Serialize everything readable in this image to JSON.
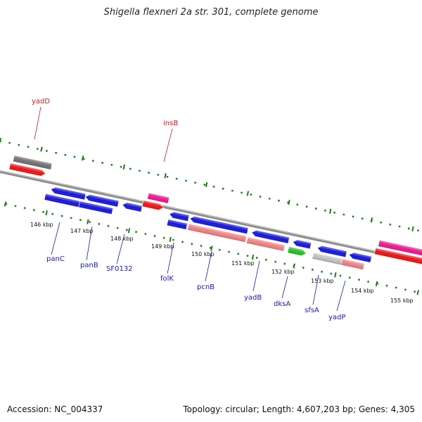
{
  "title": "Shigella flexneri 2a str. 301, complete genome",
  "footer": {
    "accession": "Accession: NC_004337",
    "topology": "Topology: circular; Length: 4,607,203 bp; Genes: 4,305"
  },
  "colors": {
    "backbone": "#8a8a8a",
    "ticks": "#1f7a1f",
    "blue": "#1414e0",
    "red": "#f01010",
    "pink": "#f0148c",
    "salmon": "#f08080",
    "green": "#22c022",
    "gray": "#707070",
    "lightgray": "#c0c0c0",
    "label_blue": "#1a1aa8",
    "label_red": "#c81a1a"
  },
  "kbp_labels": [
    "146 kbp",
    "147 kbp",
    "148 kbp",
    "149 kbp",
    "150 kbp",
    "151 kbp",
    "152 kbp",
    "153 kbp",
    "154 kbp",
    "155 kbp"
  ],
  "gene_labels": [
    {
      "name": "yadD",
      "color": "red"
    },
    {
      "name": "insB",
      "color": "red"
    },
    {
      "name": "panC",
      "color": "blue"
    },
    {
      "name": "panB",
      "color": "blue"
    },
    {
      "name": "SF0132",
      "color": "blue"
    },
    {
      "name": "folK",
      "color": "blue"
    },
    {
      "name": "pcnB",
      "color": "blue"
    },
    {
      "name": "yadB",
      "color": "blue"
    },
    {
      "name": "dksA",
      "color": "blue"
    },
    {
      "name": "sfsA",
      "color": "blue"
    },
    {
      "name": "yadP",
      "color": "blue"
    }
  ]
}
